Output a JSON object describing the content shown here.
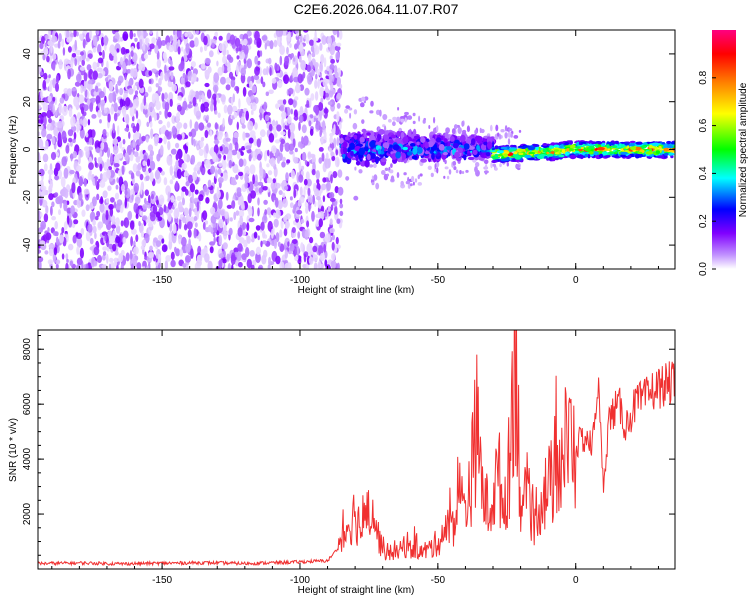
{
  "title": "C2E6.2026.064.11.07.R07",
  "chart_data": [
    {
      "type": "heatmap",
      "title": "C2E6.2026.064.11.07.R07",
      "xlabel": "Height of straight line (km)",
      "ylabel": "Frequency (Hz)",
      "xlim": [
        -195,
        36
      ],
      "ylim": [
        -50,
        50
      ],
      "xticks": [
        -150,
        -100,
        -50,
        0
      ],
      "yticks": [
        -40,
        -20,
        0,
        20,
        40
      ],
      "xtick_labels": [
        "-150",
        "-100",
        "-50",
        "0"
      ],
      "ytick_labels": [
        "-40",
        "-20",
        "0",
        "20",
        "40"
      ],
      "colorbar": {
        "label": "Normalized spectral amplitude",
        "range": [
          0,
          1
        ],
        "ticks": [
          0.0,
          0.2,
          0.4,
          0.6,
          0.8
        ],
        "tick_labels": [
          "0.0",
          "0.2",
          "0.4",
          "0.6",
          "0.8"
        ],
        "colormap": [
          "#ffffff",
          "#8000ff",
          "#0000ff",
          "#00ffff",
          "#00ff00",
          "#ffff00",
          "#ff8000",
          "#ff0000",
          "#ff0080"
        ]
      },
      "regions": [
        {
          "x_range": [
            -195,
            -85
          ],
          "freq_range": [
            -50,
            50
          ],
          "amplitude": [
            0.02,
            0.12
          ],
          "description": "broadband noise"
        },
        {
          "x_range": [
            -85,
            -30
          ],
          "freq_range": [
            -8,
            8
          ],
          "amplitude": [
            0.1,
            0.4
          ]
        },
        {
          "x_range": [
            -30,
            36
          ],
          "freq_range": [
            -3,
            3
          ],
          "amplitude": [
            0.4,
            1.0
          ]
        }
      ]
    },
    {
      "type": "line",
      "xlabel": "Height of straight line (km)",
      "ylabel": "SNR (10 * v/v)",
      "xlim": [
        -195,
        36
      ],
      "ylim": [
        0,
        8700
      ],
      "xticks": [
        -150,
        -100,
        -50,
        0
      ],
      "yticks": [
        2000,
        4000,
        6000,
        8000
      ],
      "xtick_labels": [
        "-150",
        "-100",
        "-50",
        "0"
      ],
      "ytick_labels": [
        "2000",
        "4000",
        "6000",
        "8000"
      ],
      "color": "#f03030",
      "series": [
        {
          "name": "SNR",
          "x": [
            -195,
            -180,
            -165,
            -150,
            -135,
            -120,
            -105,
            -90,
            -85,
            -82,
            -80,
            -78,
            -76,
            -74,
            -72,
            -70,
            -68,
            -66,
            -64,
            -62,
            -60,
            -58,
            -56,
            -54,
            -52,
            -50,
            -48,
            -46,
            -44,
            -42,
            -40,
            -38,
            -36,
            -34,
            -32,
            -30,
            -28,
            -26,
            -24,
            -22,
            -20,
            -18,
            -16,
            -14,
            -12,
            -10,
            -8,
            -6,
            -4,
            -2,
            0,
            2,
            4,
            6,
            8,
            10,
            12,
            14,
            16,
            18,
            20,
            22,
            24,
            26,
            28,
            30,
            32,
            34,
            36
          ],
          "y": [
            200,
            220,
            190,
            210,
            230,
            200,
            240,
            300,
            900,
            1800,
            2000,
            1500,
            1700,
            2500,
            1300,
            800,
            500,
            700,
            600,
            900,
            700,
            800,
            600,
            700,
            800,
            1000,
            1300,
            1500,
            1800,
            2300,
            2400,
            3200,
            5300,
            3000,
            2200,
            2600,
            3500,
            2200,
            3900,
            8600,
            2500,
            2400,
            1500,
            2200,
            2700,
            2900,
            3300,
            3800,
            4400,
            4600,
            4400,
            4700,
            4800,
            4400,
            6900,
            3000,
            5400,
            5800,
            5900,
            5200,
            5600,
            6100,
            6100,
            6300,
            6500,
            6600,
            6700,
            6750,
            6800
          ]
        }
      ]
    }
  ]
}
